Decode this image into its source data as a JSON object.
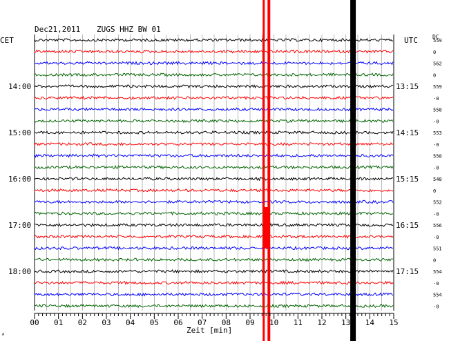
{
  "header": {
    "date": "Dec21,2011",
    "station": "ZUGS HHZ BW 01",
    "left_label": "CET",
    "right_label": "UTC",
    "dc_label": "DC"
  },
  "chart_data": {
    "type": "line",
    "title": "Dec21,2011   ZUGS HHZ BW 01",
    "xlabel": "Zeit [min]",
    "ylabel": "",
    "xlim": [
      0,
      15
    ],
    "x_ticks": [
      "00",
      "01",
      "02",
      "03",
      "04",
      "05",
      "06",
      "07",
      "08",
      "09",
      "10",
      "11",
      "12",
      "13",
      "14",
      "15"
    ],
    "trace_count": 24,
    "trace_colors": [
      "#000000",
      "#ff0000",
      "#0000ff",
      "#006400"
    ],
    "cet_hours": [
      {
        "trace": 4,
        "label": "14:00"
      },
      {
        "trace": 8,
        "label": "15:00"
      },
      {
        "trace": 12,
        "label": "16:00"
      },
      {
        "trace": 16,
        "label": "17:00"
      },
      {
        "trace": 20,
        "label": "18:00"
      }
    ],
    "utc_hours": [
      {
        "trace": 4,
        "label": "13:15"
      },
      {
        "trace": 8,
        "label": "14:15"
      },
      {
        "trace": 12,
        "label": "15:15"
      },
      {
        "trace": 16,
        "label": "16:15"
      },
      {
        "trace": 20,
        "label": "17:15"
      }
    ],
    "dc_offsets": [
      "559",
      "0",
      "562",
      "0",
      "559",
      "-0",
      "558",
      "-0",
      "553",
      "-0",
      "550",
      "-0",
      "548",
      "0",
      "552",
      "-0",
      "556",
      "-0",
      "551",
      "0",
      "554",
      "-0",
      "554",
      "-0"
    ],
    "events": [
      {
        "minute": 9.7,
        "color": "#ff0000"
      },
      {
        "minute": 13.3,
        "color": "#000000"
      }
    ]
  },
  "footer": {
    "corner_mark": "A"
  }
}
